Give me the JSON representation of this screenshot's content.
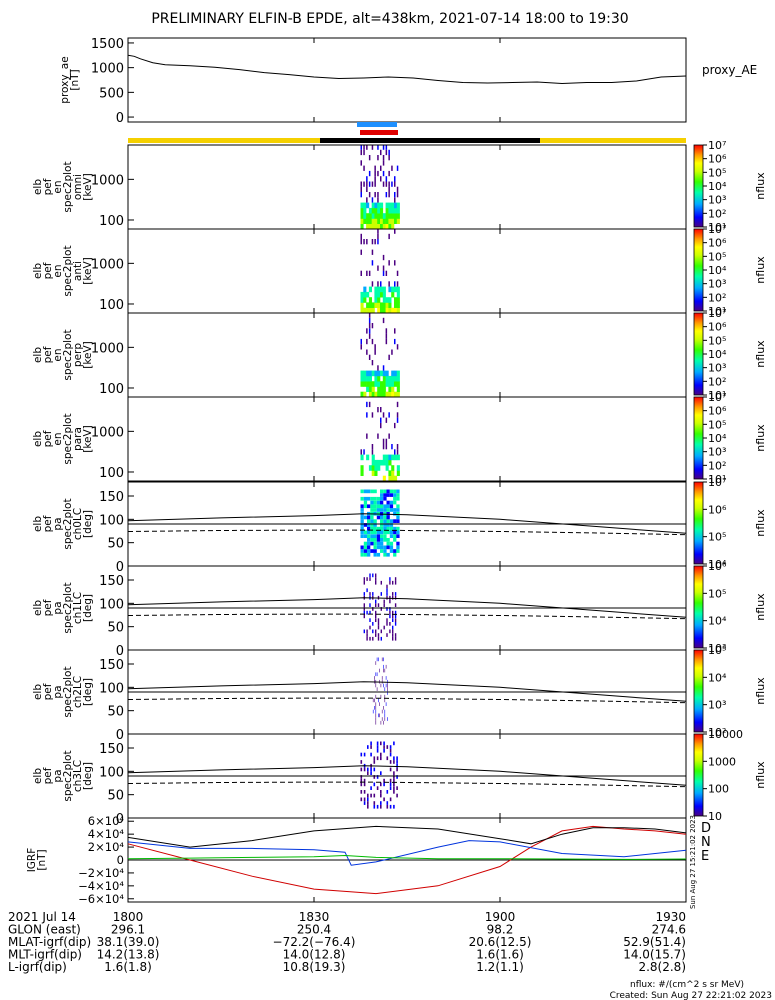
{
  "title": "PRELIMINARY ELFIN-B EPDE, alt=438km, 2021-07-14 18:00 to 19:30",
  "colors": {
    "ae_line": "#000000",
    "sunlit_bar": "#f5d000",
    "eclipse_bar": "#000000",
    "marker_blue": "#1e90ff",
    "marker_red": "#e00000",
    "grf_d": "#d00000",
    "grf_n": "#0033dd",
    "grf_e": "#00bb00",
    "grf_total": "#000000",
    "colorbar_stops": [
      "#4b0082",
      "#0000ff",
      "#00aaff",
      "#00ffaa",
      "#33ff00",
      "#ccff00",
      "#ffff00",
      "#ff9900",
      "#ff0000"
    ]
  },
  "panels": {
    "ae": {
      "ylabel": [
        "proxy_ae",
        "[nT]"
      ],
      "ticks": [
        "0",
        "500",
        "1000",
        "1500"
      ],
      "legend": "proxy_AE"
    },
    "spec": [
      {
        "ylabel": [
          "elb",
          "pef",
          "en",
          "spec2plot",
          "omni",
          "[keV]"
        ],
        "ticks": [
          "100",
          "1000"
        ]
      },
      {
        "ylabel": [
          "elb",
          "pef",
          "en",
          "spec2plot",
          "anti",
          "[keV]"
        ],
        "ticks": [
          "100",
          "1000"
        ]
      },
      {
        "ylabel": [
          "elb",
          "pef",
          "en",
          "spec2plot",
          "perp",
          "[keV]"
        ],
        "ticks": [
          "100",
          "1000"
        ]
      },
      {
        "ylabel": [
          "elb",
          "pef",
          "en",
          "spec2plot",
          "para",
          "[keV]"
        ],
        "ticks": [
          "100",
          "1000"
        ]
      }
    ],
    "pa": [
      {
        "ylabel": [
          "elb",
          "pef",
          "pa",
          "spec2plot",
          "ch0LC",
          "[deg]"
        ],
        "ticks": [
          "0",
          "50",
          "100",
          "150"
        ]
      },
      {
        "ylabel": [
          "elb",
          "pef",
          "pa",
          "spec2plot",
          "ch1LC",
          "[deg]"
        ],
        "ticks": [
          "0",
          "50",
          "100",
          "150"
        ]
      },
      {
        "ylabel": [
          "elb",
          "pef",
          "pa",
          "spec2plot",
          "ch2LC",
          "[deg]"
        ],
        "ticks": [
          "0",
          "50",
          "100",
          "150"
        ]
      },
      {
        "ylabel": [
          "elb",
          "pef",
          "pa",
          "spec2plot",
          "ch3LC",
          "[deg]"
        ],
        "ticks": [
          "0",
          "50",
          "100",
          "150"
        ]
      }
    ],
    "grf": {
      "ylabel": [
        "IGRF",
        "[nT]"
      ],
      "ticks": [
        "−6×10⁴",
        "−4×10⁴",
        "−2×10⁴",
        "0",
        "2×10⁴",
        "4×10⁴",
        "6×10⁴"
      ],
      "legend": [
        "D",
        "N",
        "E"
      ],
      "side_note": "Sun Aug 27 15:21:02 2023"
    }
  },
  "colorbars": [
    {
      "ticks": [
        "10¹",
        "10²",
        "10³",
        "10⁴",
        "10⁵",
        "10⁶",
        "10⁷"
      ],
      "label": "nflux"
    },
    {
      "ticks": [
        "10¹",
        "10²",
        "10³",
        "10⁴",
        "10⁵",
        "10⁶",
        "10⁷"
      ],
      "label": "nflux"
    },
    {
      "ticks": [
        "10¹",
        "10²",
        "10³",
        "10⁴",
        "10⁵",
        "10⁶",
        "10⁷"
      ],
      "label": "nflux"
    },
    {
      "ticks": [
        "10¹",
        "10²",
        "10³",
        "10⁴",
        "10⁵",
        "10⁶",
        "10⁷"
      ],
      "label": "nflux"
    },
    {
      "ticks": [
        "10⁴",
        "10⁵",
        "10⁶",
        "10⁷"
      ],
      "label": "nflux"
    },
    {
      "ticks": [
        "10³",
        "10⁴",
        "10⁵",
        "10⁶"
      ],
      "label": "nflux"
    },
    {
      "ticks": [
        "10²",
        "10³",
        "10⁴",
        "10⁵"
      ],
      "label": "nflux"
    },
    {
      "ticks": [
        "10",
        "100",
        "1000",
        "10000"
      ],
      "label": "nflux"
    }
  ],
  "footer": {
    "rows": [
      {
        "label": "2021 Jul 14",
        "values": [
          "1800",
          "1830",
          "1900",
          "1930"
        ]
      },
      {
        "label": "GLON (east)",
        "values": [
          "296.1",
          "250.4",
          "98.2",
          "274.6"
        ]
      },
      {
        "label": "MLAT-igrf(dip)",
        "values": [
          "38.1(39.0)",
          "−72.2(−76.4)",
          "20.6(12.5)",
          "52.9(51.4)"
        ]
      },
      {
        "label": "MLT-igrf(dip)",
        "values": [
          "14.2(13.8)",
          "14.0(12.8)",
          "1.6(1.6)",
          "14.0(15.7)"
        ]
      },
      {
        "label": "L-igrf(dip)",
        "values": [
          "1.6(1.8)",
          "10.8(19.3)",
          "1.2(1.1)",
          "2.8(2.8)"
        ]
      }
    ],
    "note1": "nflux: #/(cm^2 s sr MeV)",
    "note2": "Created: Sun Aug 27 22:21:02 2023"
  },
  "chart_data": [
    {
      "type": "line",
      "title": "PRELIMINARY ELFIN-B EPDE, alt=438km, 2021-07-14 18:00 to 19:30",
      "ylabel": "proxy_ae [nT]",
      "ylim": [
        -100,
        1600
      ],
      "xlim": [
        0,
        90
      ],
      "x_tick_labels": [
        "1800",
        "1830",
        "1900",
        "1930"
      ],
      "series": [
        {
          "name": "proxy_AE",
          "x": [
            0,
            1,
            2,
            4,
            6,
            8,
            10,
            14,
            18,
            22,
            26,
            30,
            34,
            38,
            42,
            46,
            50,
            54,
            58,
            62,
            66,
            70,
            74,
            78,
            82,
            86,
            90
          ],
          "y": [
            1250,
            1230,
            1180,
            1100,
            1060,
            1050,
            1040,
            1010,
            960,
            900,
            860,
            810,
            780,
            790,
            810,
            790,
            740,
            700,
            690,
            700,
            710,
            680,
            700,
            700,
            730,
            810,
            830
          ]
        }
      ]
    },
    {
      "type": "heatmap",
      "name": "omni",
      "ylabel": "elb pef en spec2plot omni [keV]",
      "yscale": "log",
      "data_window_minutes": [
        37.5,
        43.8
      ],
      "energy_keV_range": [
        60,
        7000
      ],
      "colorbar_range": [
        10,
        10000000
      ]
    },
    {
      "type": "heatmap",
      "name": "anti",
      "ylabel": "elb pef en spec2plot anti [keV]",
      "yscale": "log",
      "data_window_minutes": [
        37.5,
        43.8
      ],
      "energy_keV_range": [
        60,
        7000
      ],
      "colorbar_range": [
        10,
        10000000
      ]
    },
    {
      "type": "heatmap",
      "name": "perp",
      "ylabel": "elb pef en spec2plot perp [keV]",
      "yscale": "log",
      "data_window_minutes": [
        37.5,
        43.8
      ],
      "energy_keV_range": [
        60,
        7000
      ],
      "colorbar_range": [
        10,
        10000000
      ]
    },
    {
      "type": "heatmap",
      "name": "para",
      "ylabel": "elb pef en spec2plot para [keV]",
      "yscale": "log",
      "data_window_minutes": [
        37.5,
        43.8
      ],
      "energy_keV_range": [
        60,
        7000
      ],
      "colorbar_range": [
        10,
        10000000
      ]
    },
    {
      "type": "line",
      "name": "ch0LC",
      "ylabel": "elb pef pa spec2plot ch0LC [deg]",
      "ylim": [
        0,
        180
      ],
      "series": [
        {
          "x": [
            0,
            15,
            30,
            38,
            45,
            60,
            75,
            90
          ],
          "y": [
            97,
            103,
            108,
            112,
            110,
            100,
            85,
            70
          ]
        },
        {
          "x": [
            0,
            15,
            30,
            38,
            45,
            60,
            75,
            90
          ],
          "y": [
            74,
            76,
            77,
            77,
            76,
            74,
            71,
            67
          ]
        },
        {
          "x": [
            0,
            90
          ],
          "y": [
            90,
            90
          ]
        }
      ],
      "data_window_minutes": [
        37.5,
        43.8
      ]
    },
    {
      "type": "line",
      "name": "ch1LC",
      "ylabel": "elb pef pa spec2plot ch1LC [deg]",
      "ylim": [
        0,
        180
      ],
      "series": [
        {
          "x": [
            0,
            15,
            30,
            38,
            45,
            60,
            75,
            90
          ],
          "y": [
            97,
            103,
            108,
            112,
            110,
            100,
            85,
            70
          ]
        },
        {
          "x": [
            0,
            15,
            30,
            38,
            45,
            60,
            75,
            90
          ],
          "y": [
            74,
            76,
            77,
            77,
            76,
            74,
            71,
            67
          ]
        },
        {
          "x": [
            0,
            90
          ],
          "y": [
            90,
            90
          ]
        }
      ],
      "data_window_minutes": [
        38.0,
        43.5
      ]
    },
    {
      "type": "line",
      "name": "ch2LC",
      "ylabel": "elb pef pa spec2plot ch2LC [deg]",
      "ylim": [
        0,
        180
      ],
      "series": [
        {
          "x": [
            0,
            15,
            30,
            38,
            45,
            60,
            75,
            90
          ],
          "y": [
            97,
            103,
            108,
            112,
            110,
            100,
            85,
            70
          ]
        },
        {
          "x": [
            0,
            15,
            30,
            38,
            45,
            60,
            75,
            90
          ],
          "y": [
            74,
            76,
            77,
            77,
            76,
            74,
            71,
            67
          ]
        },
        {
          "x": [
            0,
            90
          ],
          "y": [
            90,
            90
          ]
        }
      ],
      "data_window_minutes": [
        39.5,
        42.0
      ]
    },
    {
      "type": "line",
      "name": "ch3LC",
      "ylabel": "elb pef pa spec2plot ch3LC [deg]",
      "ylim": [
        0,
        180
      ],
      "series": [
        {
          "x": [
            0,
            15,
            30,
            38,
            45,
            60,
            75,
            90
          ],
          "y": [
            97,
            103,
            108,
            112,
            110,
            100,
            85,
            70
          ]
        },
        {
          "x": [
            0,
            15,
            30,
            38,
            45,
            60,
            75,
            90
          ],
          "y": [
            74,
            76,
            77,
            77,
            76,
            74,
            71,
            67
          ]
        },
        {
          "x": [
            0,
            90
          ],
          "y": [
            90,
            90
          ]
        }
      ],
      "data_window_minutes": [
        37.5,
        43.8
      ]
    },
    {
      "type": "line",
      "name": "IGRF",
      "ylabel": "IGRF [nT]",
      "ylim": [
        -65000,
        65000
      ],
      "series": [
        {
          "name": "D",
          "x": [
            0,
            10,
            20,
            30,
            40,
            50,
            60,
            65,
            70,
            75,
            80,
            85,
            90
          ],
          "y": [
            25000,
            0,
            -25000,
            -45000,
            -52000,
            -40000,
            -10000,
            20000,
            45000,
            52000,
            48000,
            45000,
            40000
          ]
        },
        {
          "name": "N",
          "x": [
            0,
            10,
            20,
            30,
            35,
            36,
            40,
            50,
            55,
            60,
            70,
            80,
            90
          ],
          "y": [
            28000,
            18000,
            18000,
            16000,
            12000,
            -8000,
            -3000,
            20000,
            30000,
            28000,
            10000,
            5000,
            15000
          ]
        },
        {
          "name": "E",
          "x": [
            0,
            10,
            20,
            30,
            35,
            40,
            50,
            60,
            70,
            80,
            90
          ],
          "y": [
            2000,
            3000,
            4000,
            5000,
            7000,
            4000,
            2000,
            2000,
            1500,
            1000,
            1500
          ]
        },
        {
          "x": [
            0,
            10,
            20,
            30,
            40,
            50,
            60,
            65,
            70,
            75,
            80,
            85,
            90
          ],
          "y": [
            35000,
            20000,
            30000,
            45000,
            52000,
            48000,
            33000,
            25000,
            40000,
            50000,
            50000,
            48000,
            42000
          ]
        }
      ]
    }
  ]
}
